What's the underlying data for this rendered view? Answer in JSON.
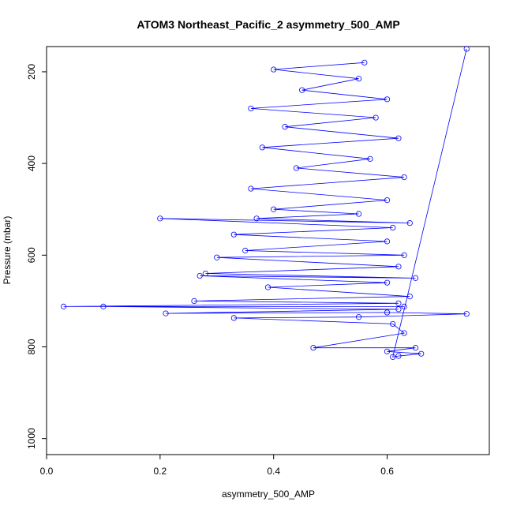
{
  "chart_data": {
    "type": "line",
    "title": "ATOM3 Northeast_Pacific_2 asymmetry_500_AMP",
    "xlabel": "asymmetry_500_AMP",
    "ylabel": "Pressure (mbar)",
    "xlim": [
      0.0,
      0.78
    ],
    "ylim": [
      1035,
      145
    ],
    "y_inverted": true,
    "x_ticks": [
      0.0,
      0.2,
      0.4,
      0.6
    ],
    "x_tick_labels": [
      "0.0",
      "0.2",
      "0.4",
      "0.6"
    ],
    "y_ticks": [
      200,
      400,
      600,
      800,
      1000
    ],
    "y_tick_labels": [
      "200",
      "400",
      "600",
      "800",
      "1000"
    ],
    "grid": false,
    "legend": "none",
    "marker": "open-circle",
    "color": "#0000ff",
    "series": [
      {
        "x": [
          0.56,
          0.4,
          0.55,
          0.45,
          0.6,
          0.36,
          0.58,
          0.42,
          0.62,
          0.38,
          0.57,
          0.44,
          0.63,
          0.36,
          0.6,
          0.4,
          0.55,
          0.37,
          0.64,
          0.2,
          0.61,
          0.33,
          0.6,
          0.35,
          0.63,
          0.3,
          0.62,
          0.28,
          0.65,
          0.27,
          0.6,
          0.39,
          0.64,
          0.26,
          0.62,
          0.03,
          0.63,
          0.1,
          0.62,
          0.21,
          0.6,
          0.74,
          0.55,
          0.33,
          0.61,
          0.63,
          0.47,
          0.65,
          0.6,
          0.66,
          0.62,
          0.61,
          0.74
        ],
        "y": [
          180,
          195,
          215,
          240,
          260,
          280,
          300,
          320,
          345,
          365,
          390,
          410,
          430,
          455,
          480,
          500,
          510,
          520,
          530,
          520,
          540,
          555,
          570,
          590,
          600,
          605,
          625,
          640,
          650,
          645,
          660,
          670,
          690,
          700,
          705,
          712,
          712,
          712,
          718,
          727,
          725,
          728,
          735,
          737,
          750,
          770,
          802,
          802,
          810,
          815,
          820,
          822,
          150
        ]
      }
    ]
  }
}
